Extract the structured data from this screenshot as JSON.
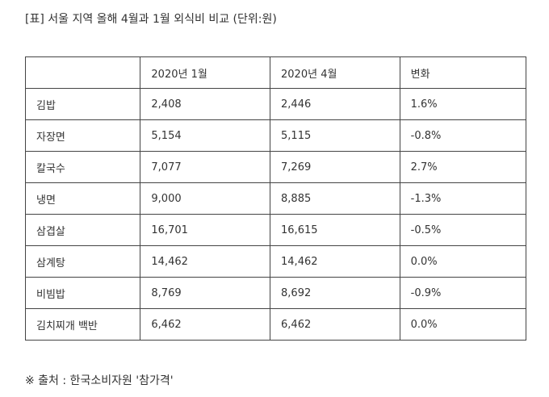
{
  "caption": "[표] 서울 지역 올해 4월과 1월 외식비 비교 (단위:원)",
  "table": {
    "headers": [
      "",
      "2020년 1월",
      "2020년 4월",
      "변화"
    ],
    "rows": [
      {
        "name": "김밥",
        "jan": "2,408",
        "apr": "2,446",
        "change": "1.6%"
      },
      {
        "name": "자장면",
        "jan": "5,154",
        "apr": "5,115",
        "change": "-0.8%"
      },
      {
        "name": "칼국수",
        "jan": "7,077",
        "apr": "7,269",
        "change": "2.7%"
      },
      {
        "name": "냉면",
        "jan": "9,000",
        "apr": "8,885",
        "change": "-1.3%"
      },
      {
        "name": "삼겹살",
        "jan": "16,701",
        "apr": "16,615",
        "change": "-0.5%"
      },
      {
        "name": "삼계탕",
        "jan": "14,462",
        "apr": "14,462",
        "change": "0.0%"
      },
      {
        "name": "비빔밥",
        "jan": "8,769",
        "apr": "8,692",
        "change": "-0.9%"
      },
      {
        "name": "김치찌개 백반",
        "jan": "6,462",
        "apr": "6,462",
        "change": "0.0%"
      }
    ]
  },
  "source": "※ 출처 : 한국소비자원 '참가격'"
}
